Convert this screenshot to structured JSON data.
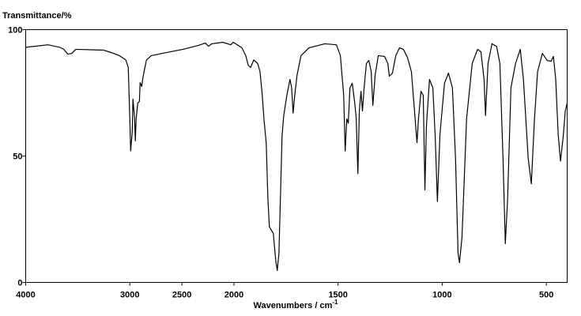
{
  "chart_data": {
    "type": "line",
    "y_label": "Transmittance/%",
    "x_label": "Wavenumbers / cm",
    "x_label_sup": "-1",
    "xlim": [
      4000,
      400
    ],
    "x_break": 2000,
    "xticks": [
      4000,
      3000,
      2500,
      2000,
      1500,
      1000,
      500
    ],
    "ylim": [
      0,
      100
    ],
    "yticks": [
      0,
      50,
      100
    ],
    "color": "#000000",
    "x": [
      4000,
      3786,
      3672,
      3634,
      3595,
      3557,
      3519,
      3252,
      3176,
      3099,
      3038,
      3015,
      3000,
      2992,
      2977,
      2970,
      2954,
      2947,
      2939,
      2924,
      2908,
      2901,
      2885,
      2878,
      2863,
      2840,
      2794,
      2641,
      2489,
      2336,
      2275,
      2244,
      2214,
      2107,
      2031,
      2008,
      1992,
      1962,
      1943,
      1932,
      1920,
      1905,
      1886,
      1875,
      1864,
      1856,
      1845,
      1837,
      1830,
      1811,
      1799,
      1792,
      1784,
      1777,
      1769,
      1761,
      1746,
      1731,
      1723,
      1716,
      1708,
      1697,
      1678,
      1640,
      1564,
      1508,
      1489,
      1473,
      1466,
      1458,
      1451,
      1443,
      1432,
      1420,
      1413,
      1405,
      1398,
      1390,
      1383,
      1375,
      1364,
      1352,
      1341,
      1333,
      1322,
      1307,
      1277,
      1261,
      1254,
      1239,
      1223,
      1205,
      1186,
      1167,
      1148,
      1133,
      1121,
      1114,
      1102,
      1091,
      1083,
      1076,
      1061,
      1045,
      1034,
      1023,
      1011,
      989,
      970,
      951,
      936,
      924,
      917,
      905,
      883,
      856,
      830,
      814,
      799,
      792,
      780,
      761,
      739,
      723,
      708,
      697,
      686,
      670,
      648,
      625,
      610,
      587,
      572,
      557,
      542,
      519,
      496,
      477,
      466,
      455,
      443,
      432,
      420,
      409,
      400
    ],
    "values": [
      93,
      94,
      93,
      92.2,
      90.3,
      90.6,
      92.2,
      91.9,
      90.9,
      89.7,
      88,
      85,
      64.7,
      52,
      59.4,
      72.5,
      64.7,
      56,
      64.7,
      70.9,
      71.6,
      79,
      77.5,
      80,
      83.4,
      88,
      89.7,
      91,
      92.2,
      93.8,
      94.7,
      93.4,
      94.4,
      95,
      94,
      95,
      94.4,
      92.8,
      89.7,
      86,
      85,
      88,
      86.6,
      83.4,
      74,
      64.7,
      55,
      33,
      22,
      19.4,
      8.4,
      4.7,
      11.6,
      33,
      58,
      66,
      74,
      80.3,
      77,
      67,
      74,
      82,
      89.7,
      92.8,
      94.4,
      94,
      89.7,
      74,
      52,
      64.7,
      63,
      77,
      78.8,
      71,
      65,
      43,
      67.8,
      75.6,
      67.8,
      77,
      86.6,
      87.8,
      83.4,
      70,
      82,
      89.7,
      89.4,
      86.6,
      81.6,
      82.8,
      89.7,
      92.8,
      92.2,
      89,
      83.4,
      67.8,
      55.3,
      64.7,
      75.6,
      74,
      36.6,
      61.6,
      80.3,
      77,
      58.4,
      32,
      58.4,
      78.8,
      82.8,
      77,
      49,
      11.6,
      7.8,
      17.8,
      64.7,
      86.6,
      92.2,
      91.2,
      80.3,
      66,
      86.6,
      94.4,
      93.4,
      86.6,
      49,
      15.3,
      33,
      77,
      86.6,
      92.2,
      80.3,
      49,
      39,
      64.7,
      83.4,
      90.6,
      87.8,
      87.5,
      89.4,
      80.3,
      58.4,
      48,
      56.9,
      67.8,
      71
    ]
  }
}
